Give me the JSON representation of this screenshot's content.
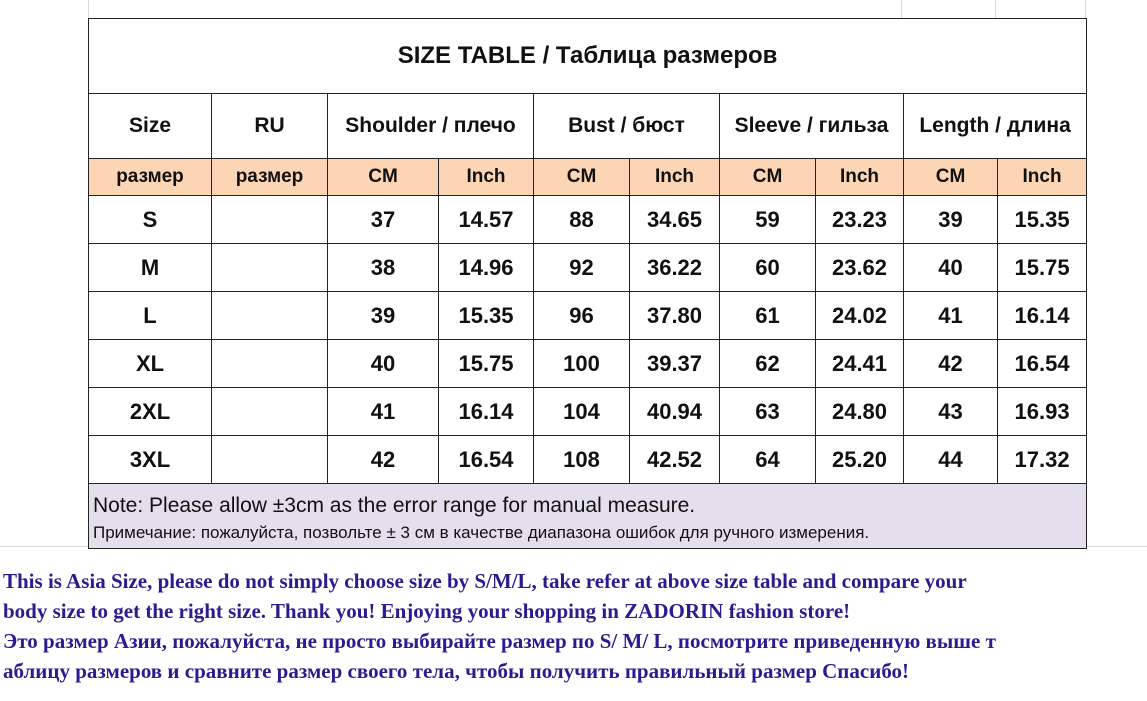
{
  "title": "SIZE TABLE  / Таблица размеров",
  "headers": [
    "Size",
    "RU",
    "Shoulder / плечо",
    "Bust / бюст",
    "Sleeve / гильза",
    "Length / длина"
  ],
  "subheaders": [
    "размер",
    "размер",
    "CM",
    "Inch",
    "CM",
    "Inch",
    "CM",
    "Inch",
    "CM",
    "Inch"
  ],
  "rows": [
    [
      "S",
      "",
      "37",
      "14.57",
      "88",
      "34.65",
      "59",
      "23.23",
      "39",
      "15.35"
    ],
    [
      "M",
      "",
      "38",
      "14.96",
      "92",
      "36.22",
      "60",
      "23.62",
      "40",
      "15.75"
    ],
    [
      "L",
      "",
      "39",
      "15.35",
      "96",
      "37.80",
      "61",
      "24.02",
      "41",
      "16.14"
    ],
    [
      "XL",
      "",
      "40",
      "15.75",
      "100",
      "39.37",
      "62",
      "24.41",
      "42",
      "16.54"
    ],
    [
      "2XL",
      "",
      "41",
      "16.14",
      "104",
      "40.94",
      "63",
      "24.80",
      "43",
      "16.93"
    ],
    [
      "3XL",
      "",
      "42",
      "16.54",
      "108",
      "42.52",
      "64",
      "25.20",
      "44",
      "17.32"
    ]
  ],
  "note_en": "Note: Please allow ±3cm as the error range for manual measure.",
  "note_ru": "Примечание: пожалуйста, позвольте ± 3 см в качестве диапазона ошибок для ручного измерения.",
  "promo": {
    "en_1": "This is Asia Size, please do not simply choose size by S/M/L, take refer at above size table and compare your",
    "en_2": "body size to get the right size. Thank you!  Enjoying your shopping in ZADORIN fashion store!",
    "ru_1": "Это размер Азии, пожалуйста, не просто выбирайте размер по S/ M/ L, посмотрите приведенную выше т",
    "ru_2": "аблицу размеров и сравните размер своего тела, чтобы получить правильный размер Спасибо!"
  },
  "colors": {
    "subheader_bg": "#fcd5b4",
    "note_bg": "#e4dfec",
    "promo_text": "#2e1a8f"
  }
}
